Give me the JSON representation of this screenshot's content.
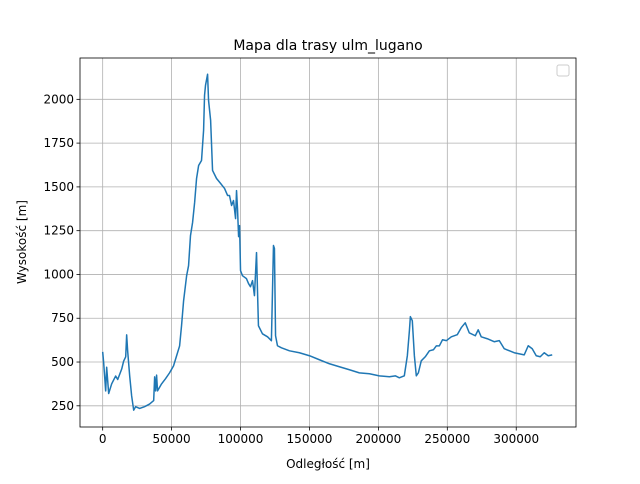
{
  "chart_data": {
    "type": "line",
    "title": "Mapa dla trasy ulm_lugano",
    "xlabel": "Odległość [m]",
    "ylabel": "Wysokość [m]",
    "x": [
      0,
      725,
      2170,
      2900,
      4350,
      6500,
      9400,
      10900,
      13800,
      15200,
      16700,
      17400,
      18100,
      19600,
      21000,
      22500,
      23900,
      26800,
      30400,
      34000,
      37000,
      37700,
      38400,
      39100,
      39800,
      42700,
      45600,
      48500,
      51400,
      53600,
      55800,
      57200,
      58700,
      60900,
      62300,
      63700,
      65200,
      66700,
      68100,
      69600,
      71700,
      73200,
      73900,
      74600,
      76100,
      76800,
      78300,
      79700,
      82600,
      85500,
      88400,
      90600,
      92000,
      93500,
      94900,
      96400,
      97100,
      97800,
      98600,
      99300,
      100000,
      101400,
      104300,
      105800,
      107200,
      108700,
      110100,
      111600,
      112300,
      113000,
      115900,
      119600,
      122400,
      123900,
      124600,
      125400,
      126800,
      129700,
      135500,
      142700,
      150000,
      157200,
      164500,
      171700,
      179000,
      186200,
      193500,
      200700,
      208000,
      212300,
      215200,
      218800,
      221000,
      222500,
      223200,
      224600,
      226100,
      227500,
      229000,
      231100,
      234000,
      237000,
      239900,
      242000,
      244200,
      246500,
      249300,
      252900,
      257200,
      260100,
      263000,
      265900,
      270300,
      272400,
      274600,
      279000,
      284000,
      287700,
      291300,
      298500,
      305800,
      308700,
      311600,
      314500,
      317400,
      320300,
      323200,
      326100
    ],
    "series": [
      {
        "color": "#1f77b4",
        "values": [
          558,
          495,
          335,
          470,
          320,
          375,
          420,
          400,
          460,
          505,
          530,
          655,
          565,
          420,
          307,
          225,
          245,
          235,
          245,
          260,
          280,
          415,
          335,
          425,
          335,
          375,
          405,
          438,
          478,
          535,
          592,
          707,
          850,
          993,
          1050,
          1222,
          1296,
          1411,
          1548,
          1622,
          1651,
          1823,
          2023,
          2080,
          2143,
          1994,
          1880,
          1594,
          1548,
          1520,
          1491,
          1451,
          1451,
          1394,
          1422,
          1319,
          1479,
          1376,
          1216,
          1279,
          1022,
          993,
          976,
          948,
          930,
          965,
          879,
          1125,
          908,
          707,
          661,
          644,
          622,
          1165,
          1148,
          650,
          593,
          581,
          564,
          553,
          536,
          513,
          490,
          473,
          456,
          438,
          433,
          421,
          416,
          421,
          410,
          421,
          536,
          679,
          759,
          736,
          536,
          421,
          438,
          507,
          530,
          564,
          570,
          592,
          592,
          627,
          622,
          644,
          656,
          696,
          724,
          667,
          650,
          684,
          644,
          633,
          616,
          622,
          576,
          553,
          541,
          593,
          576,
          536,
          530,
          553,
          536,
          541
        ]
      }
    ],
    "xlim": [
      -16450,
      343350
    ],
    "ylim": [
      129,
      2236
    ],
    "xticks": [
      0,
      50000,
      100000,
      150000,
      200000,
      250000,
      300000
    ],
    "yticks": [
      250,
      500,
      750,
      1000,
      1250,
      1500,
      1750,
      2000
    ],
    "grid": true,
    "legend": "upper right"
  }
}
